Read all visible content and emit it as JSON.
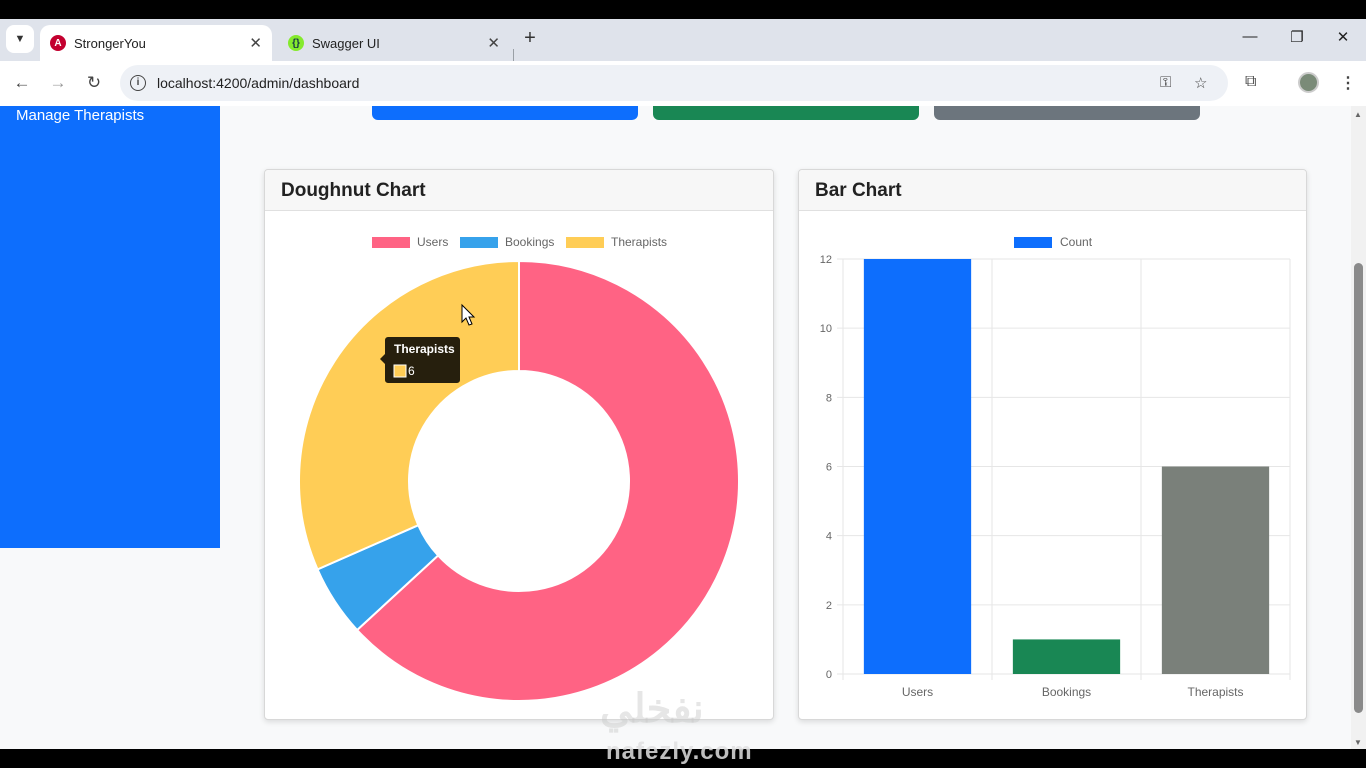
{
  "browser": {
    "tabs": [
      {
        "title": "StrongerYou",
        "active": true
      },
      {
        "title": "Swagger UI",
        "active": false
      }
    ],
    "url": "localhost:4200/admin/dashboard"
  },
  "sidebar": {
    "items": [
      {
        "label": "Manage Therapists"
      }
    ]
  },
  "colors": {
    "primary": "#0d6efd",
    "success": "#198754",
    "secondary": "#6c757d",
    "users": "#ff6384",
    "bookings": "#36a2eb",
    "therapists": "#ffcd56",
    "bar_gray": "#7a807a"
  },
  "doughnut_card": {
    "title": "Doughnut Chart"
  },
  "bar_card": {
    "title": "Bar Chart"
  },
  "tooltip": {
    "title": "Therapists",
    "value": "6"
  },
  "watermark": {
    "text": "نفخلي",
    "url": "nafezly.com"
  },
  "chart_data": [
    {
      "type": "pie",
      "title": "Doughnut Chart",
      "labels": [
        "Users",
        "Bookings",
        "Therapists"
      ],
      "values": [
        12,
        1,
        6
      ],
      "legend": "top"
    },
    {
      "type": "bar",
      "title": "Bar Chart",
      "categories": [
        "Users",
        "Bookings",
        "Therapists"
      ],
      "series": [
        {
          "name": "Count",
          "values": [
            12,
            1,
            6
          ]
        }
      ],
      "bar_colors": [
        "#0d6efd",
        "#198754",
        "#7a807a"
      ],
      "ylim": [
        0,
        12
      ],
      "yticks": [
        0,
        2,
        4,
        6,
        8,
        10,
        12
      ],
      "grid": true,
      "legend": "top"
    }
  ]
}
